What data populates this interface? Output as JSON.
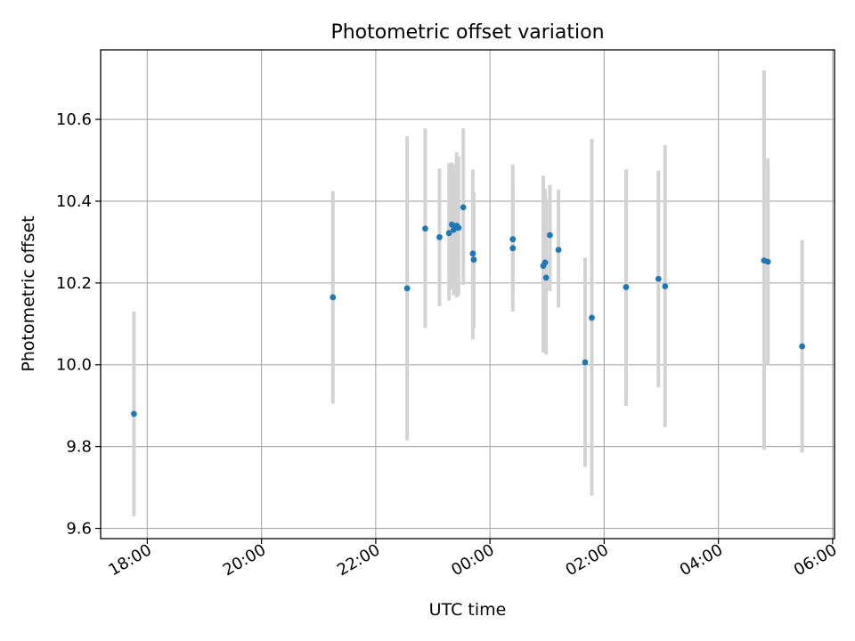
{
  "chart_data": {
    "type": "scatter",
    "title": "Photometric offset variation",
    "xlabel": "UTC time",
    "ylabel": "Photometric offset",
    "x_unit": "UTC time (hh:mm); times after midnight fall on the following day",
    "x_tick_labels": [
      "18:00",
      "20:00",
      "22:00",
      "00:00",
      "02:00",
      "04:00",
      "06:00"
    ],
    "y_tick_labels": [
      "9.6",
      "9.8",
      "10.0",
      "10.2",
      "10.4",
      "10.6"
    ],
    "xlim": [
      "17:11",
      "06:02"
    ],
    "ylim": [
      9.575,
      10.77
    ],
    "grid": true,
    "colors": {
      "points": "#1f77b4",
      "error_bars": "#d3d3d3",
      "grid": "#b0b0b0",
      "axes": "#000000"
    },
    "series": [
      {
        "points": [
          {
            "x": "17:46",
            "y": 9.88,
            "yerr_low": 9.63,
            "yerr_high": 10.13
          },
          {
            "x": "21:15",
            "y": 10.165,
            "yerr_low": 9.905,
            "yerr_high": 10.425
          },
          {
            "x": "22:33",
            "y": 10.187,
            "yerr_low": 9.815,
            "yerr_high": 10.559
          },
          {
            "x": "22:52",
            "y": 10.333,
            "yerr_low": 10.09,
            "yerr_high": 10.578
          },
          {
            "x": "23:07",
            "y": 10.312,
            "yerr_low": 10.143,
            "yerr_high": 10.48
          },
          {
            "x": "23:17",
            "y": 10.322,
            "yerr_low": 10.157,
            "yerr_high": 10.493
          },
          {
            "x": "23:20",
            "y": 10.343,
            "yerr_low": 10.183,
            "yerr_high": 10.495
          },
          {
            "x": "23:22",
            "y": 10.33,
            "yerr_low": 10.17,
            "yerr_high": 10.49
          },
          {
            "x": "23:25",
            "y": 10.34,
            "yerr_low": 10.165,
            "yerr_high": 10.52
          },
          {
            "x": "23:27",
            "y": 10.335,
            "yerr_low": 10.17,
            "yerr_high": 10.51
          },
          {
            "x": "23:32",
            "y": 10.385,
            "yerr_low": 10.195,
            "yerr_high": 10.578
          },
          {
            "x": "23:42",
            "y": 10.272,
            "yerr_low": 10.062,
            "yerr_high": 10.477
          },
          {
            "x": "23:43",
            "y": 10.257,
            "yerr_low": 10.09,
            "yerr_high": 10.42
          },
          {
            "x": "00:24",
            "y": 10.307,
            "yerr_low": 10.13,
            "yerr_high": 10.49
          },
          {
            "x": "00:24",
            "y": 10.285,
            "yerr_low": 10.17,
            "yerr_high": 10.44
          },
          {
            "x": "00:56",
            "y": 10.242,
            "yerr_low": 10.03,
            "yerr_high": 10.462
          },
          {
            "x": "00:58",
            "y": 10.25,
            "yerr_low": 10.05,
            "yerr_high": 10.43
          },
          {
            "x": "00:59",
            "y": 10.213,
            "yerr_low": 10.025,
            "yerr_high": 10.405
          },
          {
            "x": "01:03",
            "y": 10.317,
            "yerr_low": 10.18,
            "yerr_high": 10.44
          },
          {
            "x": "01:12",
            "y": 10.281,
            "yerr_low": 10.14,
            "yerr_high": 10.428
          },
          {
            "x": "01:40",
            "y": 10.006,
            "yerr_low": 9.75,
            "yerr_high": 10.262
          },
          {
            "x": "01:47",
            "y": 10.115,
            "yerr_low": 9.68,
            "yerr_high": 10.553
          },
          {
            "x": "02:23",
            "y": 10.19,
            "yerr_low": 9.9,
            "yerr_high": 10.478
          },
          {
            "x": "02:57",
            "y": 10.21,
            "yerr_low": 9.945,
            "yerr_high": 10.475
          },
          {
            "x": "03:04",
            "y": 10.192,
            "yerr_low": 9.848,
            "yerr_high": 10.537
          },
          {
            "x": "04:48",
            "y": 10.255,
            "yerr_low": 9.792,
            "yerr_high": 10.72
          },
          {
            "x": "04:52",
            "y": 10.252,
            "yerr_low": 10.0,
            "yerr_high": 10.505
          },
          {
            "x": "05:28",
            "y": 10.045,
            "yerr_low": 9.785,
            "yerr_high": 10.305
          }
        ]
      }
    ]
  }
}
